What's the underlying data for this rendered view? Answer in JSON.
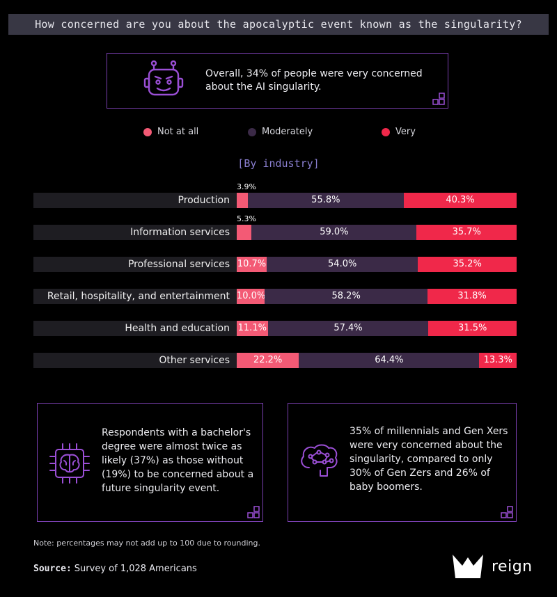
{
  "title": "How concerned are you about the apocalyptic event known as the singularity?",
  "callout_top": {
    "text": "Overall, 34% of people were very concerned about the AI singularity.",
    "icon": "robot-icon"
  },
  "legend": [
    {
      "label": "Not at all",
      "color": "#f35a75"
    },
    {
      "label": "Moderately",
      "color": "#3b2a47"
    },
    {
      "label": "Very",
      "color": "#f0284a"
    }
  ],
  "subtitle": "[By industry]",
  "chart_data": {
    "type": "bar",
    "stacked": true,
    "orientation": "horizontal",
    "categories": [
      "Production",
      "Information services",
      "Professional services",
      "Retail, hospitality, and entertainment",
      "Health and education",
      "Other services"
    ],
    "series": [
      {
        "name": "Not at all",
        "color": "#f35a75",
        "values": [
          3.9,
          5.3,
          10.7,
          10.0,
          11.1,
          22.2
        ]
      },
      {
        "name": "Moderately",
        "color": "#3b2a47",
        "values": [
          55.8,
          59.0,
          54.0,
          58.2,
          57.4,
          64.4
        ]
      },
      {
        "name": "Very",
        "color": "#f0284a",
        "values": [
          40.3,
          35.7,
          35.2,
          31.8,
          31.5,
          13.3
        ]
      }
    ],
    "labels": [
      [
        "3.9%",
        "55.8%",
        "40.3%"
      ],
      [
        "5.3%",
        "59.0%",
        "35.7%"
      ],
      [
        "10.7%",
        "54.0%",
        "35.2%"
      ],
      [
        "10.0%",
        "58.2%",
        "31.8%"
      ],
      [
        "11.1%",
        "57.4%",
        "31.5%"
      ],
      [
        "22.2%",
        "64.4%",
        "13.3%"
      ]
    ],
    "title": "[By industry]",
    "xlim": [
      0,
      100
    ],
    "grid": false,
    "legend_position": "top"
  },
  "box_left": {
    "text": "Respondents with a bachelor's degree were almost twice as likely (37%) as those without (19%) to be concerned about a future singularity event.",
    "icon": "brain-chip-icon"
  },
  "box_right": {
    "text": "35% of millennials and Gen Xers were very concerned about the singularity, compared to only 30% of Gen Zers and 26% of baby boomers.",
    "icon": "brain-network-icon"
  },
  "note": "Note:  percentages may not add up to 100 due to rounding.",
  "source": {
    "label": "Source:",
    "text": "Survey of 1,028 Americans"
  },
  "logo": {
    "text": "reign",
    "icon": "crown-logo-icon"
  }
}
